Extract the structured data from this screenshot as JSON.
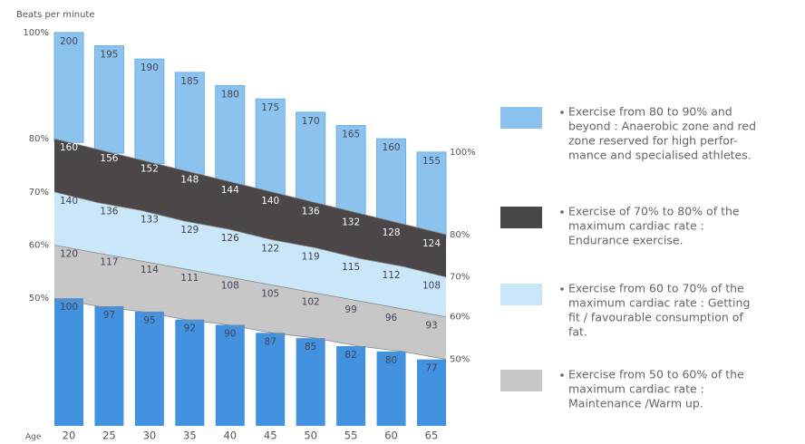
{
  "chart_data": {
    "type": "zones",
    "y_axis_label": "Beats per minute",
    "x_axis_label": "Age",
    "categories": [
      "20",
      "25",
      "30",
      "35",
      "40",
      "45",
      "50",
      "55",
      "60",
      "65"
    ],
    "series": [
      {
        "color": "#8cc3ee",
        "values": [
          200,
          195,
          190,
          185,
          180,
          175,
          170,
          165,
          160,
          155
        ]
      },
      {
        "color": "#4b4648",
        "values": [
          160,
          156,
          152,
          148,
          144,
          140,
          136,
          132,
          128,
          124
        ]
      },
      {
        "color": "#c9e7f8",
        "values": [
          140,
          136,
          133,
          129,
          126,
          122,
          119,
          115,
          112,
          108
        ]
      },
      {
        "color": "#c7c7c7",
        "values": [
          120,
          117,
          114,
          111,
          108,
          105,
          102,
          99,
          96,
          93
        ]
      },
      {
        "color": "#4392e0",
        "values": [
          100,
          97,
          95,
          92,
          90,
          87,
          85,
          82,
          80,
          77
        ]
      }
    ],
    "ylim": [
      52,
      202
    ],
    "yticks": [
      {
        "value": 200,
        "label": "100%"
      },
      {
        "value": 160,
        "label": "80%"
      },
      {
        "value": 140,
        "label": "70%"
      },
      {
        "value": 120,
        "label": "60%"
      },
      {
        "value": 100,
        "label": "50%"
      }
    ],
    "yticks_right": [
      {
        "value": 155,
        "label": "100%"
      },
      {
        "value": 124,
        "label": "80%"
      },
      {
        "value": 108,
        "label": "70%"
      },
      {
        "value": 93,
        "label": "60%"
      },
      {
        "value": 77,
        "label": "50%"
      }
    ],
    "legend": [
      {
        "color": "#8cc3ee",
        "lines": [
          "Exercise from 80 to 90% and",
          "beyond : Anaerobic zone and red",
          "zone reserved for high perfor-",
          "mance and specialised athletes."
        ]
      },
      {
        "color": "#4b4648",
        "lines": [
          "Exercise of 70% to 80% of the",
          "maximum cardiac rate :",
          "Endurance exercise."
        ]
      },
      {
        "color": "#c9e7f8",
        "lines": [
          "Exercise from 60 to  70% of the",
          "maximum cardiac rate :  Getting",
          "fit / favourable consumption of",
          "fat."
        ]
      },
      {
        "color": "#c7c7c7",
        "lines": [
          "Exercise from 50 to 60% of the",
          "maximum cardiac rate :",
          "Maintenance /Warm up."
        ]
      }
    ]
  }
}
